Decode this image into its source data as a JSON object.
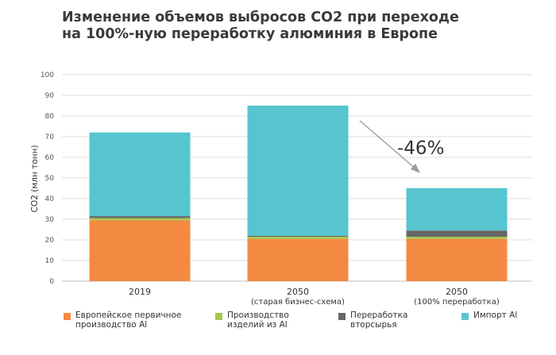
{
  "title_line1": "Изменение объемов выбросов CO2 при переходе",
  "title_line2": "на 100%-ную переработку алюминия в Европе",
  "chart_data": {
    "type": "bar",
    "stacked": true,
    "ylabel": "CO2 (млн тонн)",
    "ylim": [
      0,
      100
    ],
    "yticks": [
      "0",
      "10",
      "20",
      "30",
      "40",
      "50",
      "60",
      "70",
      "80",
      "90",
      "100"
    ],
    "grid": true,
    "legend_position": "bottom",
    "categories": [
      {
        "label": "2019",
        "sublabel": ""
      },
      {
        "label": "2050",
        "sublabel": "(старая бизнес-схема)"
      },
      {
        "label": "2050",
        "sublabel": "(100% переработка)"
      }
    ],
    "series": [
      {
        "name": "Европейское первичное\nпроизводство Al",
        "color": "#f48a42",
        "values": [
          29.5,
          20.5,
          20.5
        ]
      },
      {
        "name": "Производство\nизделий из Al",
        "color": "#a3c94a",
        "values": [
          1.0,
          1.0,
          1.0
        ]
      },
      {
        "name": "Переработка\nвторсырья",
        "color": "#666666",
        "values": [
          1.0,
          0.5,
          3.0
        ]
      },
      {
        "name": "Импорт Al",
        "color": "#56c5d0",
        "values": [
          40.5,
          63.0,
          20.5
        ]
      }
    ],
    "annotation": {
      "text": "-46%"
    }
  }
}
